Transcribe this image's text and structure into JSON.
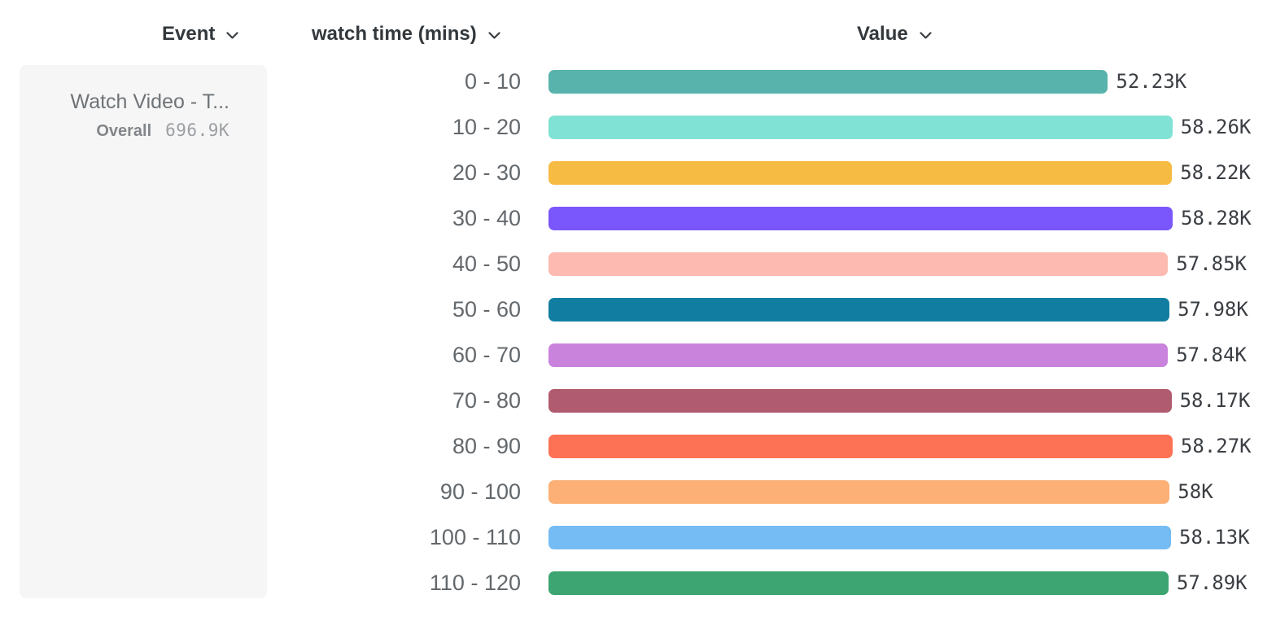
{
  "columns": {
    "event": {
      "label": "Event"
    },
    "breakdown": {
      "label": "watch time (mins)"
    },
    "value": {
      "label": "Value"
    }
  },
  "event_card": {
    "name": "Watch Video - T...",
    "overall_label": "Overall",
    "overall_value": "696.9K"
  },
  "chart_data": {
    "type": "bar",
    "orientation": "horizontal",
    "title": "",
    "xlabel": "Value",
    "ylabel": "watch time (mins)",
    "categories": [
      "0 - 10",
      "10 - 20",
      "20 - 30",
      "30 - 40",
      "40 - 50",
      "50 - 60",
      "60 - 70",
      "70 - 80",
      "80 - 90",
      "90 - 100",
      "100 - 110",
      "110 - 120"
    ],
    "values": [
      52230,
      58260,
      58220,
      58280,
      57850,
      57980,
      57840,
      58170,
      58270,
      58000,
      58130,
      57890
    ],
    "value_labels": [
      "52.23K",
      "58.26K",
      "58.22K",
      "58.28K",
      "57.85K",
      "57.98K",
      "57.84K",
      "58.17K",
      "58.27K",
      "58K",
      "58.13K",
      "57.89K"
    ],
    "bar_colors": [
      "#58b3ac",
      "#7fe2d4",
      "#f6bb42",
      "#7a57fc",
      "#fdbab1",
      "#117ea1",
      "#c983dd",
      "#b05b6f",
      "#fd7254",
      "#fcb075",
      "#74bcf3",
      "#3ca571"
    ],
    "xlim": [
      0,
      58280
    ],
    "grid": false,
    "legend": "none",
    "chevron_color": "#383d42"
  }
}
